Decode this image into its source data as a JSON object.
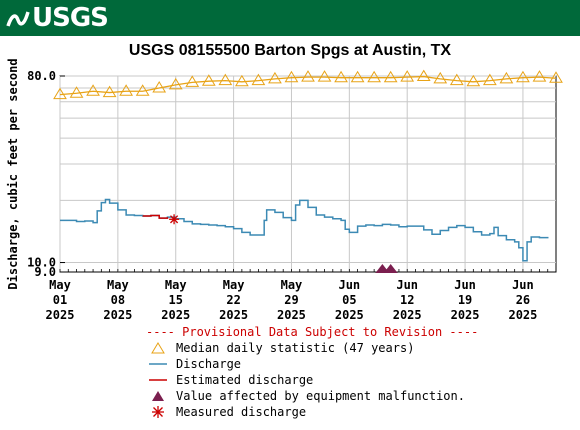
{
  "header": {
    "logo_text": "USGS"
  },
  "chart_data": {
    "type": "line",
    "title": "USGS 08155500 Barton Spgs at Austin, TX",
    "ylabel": "Discharge, cubic feet per second",
    "y_scale": "log",
    "ylim": [
      9.0,
      80.0
    ],
    "y_ticks": [
      {
        "value": 80.0,
        "label": "80.0"
      },
      {
        "value": 10.0,
        "label": "10.0"
      },
      {
        "value": 9.0,
        "label": "9.0"
      }
    ],
    "xlim": [
      "2025-05-01",
      "2025-06-30"
    ],
    "x_ticks": [
      {
        "date": "2025-05-01",
        "lines": [
          "May",
          "01",
          "2025"
        ]
      },
      {
        "date": "2025-05-08",
        "lines": [
          "May",
          "08",
          "2025"
        ]
      },
      {
        "date": "2025-05-15",
        "lines": [
          "May",
          "15",
          "2025"
        ]
      },
      {
        "date": "2025-05-22",
        "lines": [
          "May",
          "22",
          "2025"
        ]
      },
      {
        "date": "2025-05-29",
        "lines": [
          "May",
          "29",
          "2025"
        ]
      },
      {
        "date": "2025-06-05",
        "lines": [
          "Jun",
          "05",
          "2025"
        ]
      },
      {
        "date": "2025-06-12",
        "lines": [
          "Jun",
          "12",
          "2025"
        ]
      },
      {
        "date": "2025-06-19",
        "lines": [
          "Jun",
          "19",
          "2025"
        ]
      },
      {
        "date": "2025-06-26",
        "lines": [
          "Jun",
          "26",
          "2025"
        ]
      }
    ],
    "grid": true,
    "series": [
      {
        "name": "Median daily statistic (47 years)",
        "color": "#e8a317",
        "marker": "triangle",
        "points": [
          [
            "2025-05-01",
            65.0
          ],
          [
            "2025-05-03",
            66.0
          ],
          [
            "2025-05-05",
            67.5
          ],
          [
            "2025-05-07",
            66.5
          ],
          [
            "2025-05-09",
            67.5
          ],
          [
            "2025-05-11",
            67.5
          ],
          [
            "2025-05-13",
            70.0
          ],
          [
            "2025-05-15",
            72.5
          ],
          [
            "2025-05-17",
            74.5
          ],
          [
            "2025-05-19",
            75.5
          ],
          [
            "2025-05-21",
            76.0
          ],
          [
            "2025-05-23",
            75.0
          ],
          [
            "2025-05-25",
            76.0
          ],
          [
            "2025-05-27",
            77.5
          ],
          [
            "2025-05-29",
            78.5
          ],
          [
            "2025-05-31",
            79.0
          ],
          [
            "2025-06-02",
            79.0
          ],
          [
            "2025-06-04",
            78.5
          ],
          [
            "2025-06-06",
            78.5
          ],
          [
            "2025-06-08",
            78.5
          ],
          [
            "2025-06-10",
            78.5
          ],
          [
            "2025-06-12",
            79.0
          ],
          [
            "2025-06-14",
            79.5
          ],
          [
            "2025-06-16",
            77.5
          ],
          [
            "2025-06-18",
            76.0
          ],
          [
            "2025-06-20",
            75.0
          ],
          [
            "2025-06-22",
            76.0
          ],
          [
            "2025-06-24",
            77.5
          ],
          [
            "2025-06-26",
            78.5
          ],
          [
            "2025-06-28",
            79.0
          ],
          [
            "2025-06-30",
            78.0
          ]
        ]
      },
      {
        "name": "Discharge",
        "color": "#3c8ab4",
        "step": true,
        "points": [
          [
            "2025-05-01",
            16.0
          ],
          [
            "2025-05-02",
            16.0
          ],
          [
            "2025-05-03",
            15.8
          ],
          [
            "2025-05-04",
            15.9
          ],
          [
            "2025-05-05",
            15.6
          ],
          [
            "2025-05-05.5",
            17.8
          ],
          [
            "2025-05-06",
            19.5
          ],
          [
            "2025-05-06.5",
            20.2
          ],
          [
            "2025-05-07",
            19.4
          ],
          [
            "2025-05-08",
            18.0
          ],
          [
            "2025-05-09",
            17.0
          ],
          [
            "2025-05-10",
            16.9
          ],
          [
            "2025-05-11",
            16.8
          ],
          [
            "2025-05-12",
            16.9
          ],
          [
            "2025-05-13",
            16.4
          ],
          [
            "2025-05-14",
            16.6
          ],
          [
            "2025-05-15",
            16.3
          ],
          [
            "2025-05-16",
            15.8
          ],
          [
            "2025-05-17",
            15.4
          ],
          [
            "2025-05-18",
            15.3
          ],
          [
            "2025-05-19",
            15.2
          ],
          [
            "2025-05-20",
            15.1
          ],
          [
            "2025-05-21",
            14.9
          ],
          [
            "2025-05-22",
            14.6
          ],
          [
            "2025-05-23",
            14.0
          ],
          [
            "2025-05-24",
            13.6
          ],
          [
            "2025-05-25",
            13.6
          ],
          [
            "2025-05-25.7",
            16.0
          ],
          [
            "2025-05-26",
            18.0
          ],
          [
            "2025-05-27",
            17.5
          ],
          [
            "2025-05-28",
            16.5
          ],
          [
            "2025-05-29",
            16.0
          ],
          [
            "2025-05-29.5",
            19.0
          ],
          [
            "2025-05-30",
            20.0
          ],
          [
            "2025-05-31",
            18.5
          ],
          [
            "2025-06-01",
            17.0
          ],
          [
            "2025-06-02",
            16.6
          ],
          [
            "2025-06-03",
            16.3
          ],
          [
            "2025-06-04",
            16.0
          ],
          [
            "2025-06-04.5",
            14.5
          ],
          [
            "2025-06-05",
            14.0
          ],
          [
            "2025-06-06",
            15.0
          ],
          [
            "2025-06-07",
            15.2
          ],
          [
            "2025-06-08",
            15.1
          ],
          [
            "2025-06-09",
            15.3
          ],
          [
            "2025-06-10",
            15.2
          ],
          [
            "2025-06-11",
            14.9
          ],
          [
            "2025-06-12",
            15.0
          ],
          [
            "2025-06-13",
            15.0
          ],
          [
            "2025-06-14",
            14.4
          ],
          [
            "2025-06-15",
            13.7
          ],
          [
            "2025-06-16",
            14.3
          ],
          [
            "2025-06-17",
            14.8
          ],
          [
            "2025-06-18",
            15.1
          ],
          [
            "2025-06-19",
            14.8
          ],
          [
            "2025-06-20",
            14.1
          ],
          [
            "2025-06-21",
            13.6
          ],
          [
            "2025-06-22",
            13.8
          ],
          [
            "2025-06-22.5",
            14.8
          ],
          [
            "2025-06-23",
            13.5
          ],
          [
            "2025-06-24",
            12.9
          ],
          [
            "2025-06-25",
            12.6
          ],
          [
            "2025-06-25.5",
            11.8
          ],
          [
            "2025-06-26",
            10.2
          ],
          [
            "2025-06-26.5",
            12.6
          ],
          [
            "2025-06-27",
            13.3
          ],
          [
            "2025-06-28",
            13.2
          ],
          [
            "2025-06-29",
            13.1
          ]
        ]
      },
      {
        "name": "Estimated discharge",
        "color": "#cc0000",
        "points": [
          [
            "2025-05-11",
            16.8
          ],
          [
            "2025-05-12",
            16.9
          ],
          [
            "2025-05-13",
            16.4
          ],
          [
            "2025-05-14",
            16.6
          ]
        ]
      },
      {
        "name": "Value affected by equipment malfunction.",
        "color": "#7b1f4f",
        "marker": "triangle-filled",
        "points": [
          [
            "2025-06-09",
            9.0
          ],
          [
            "2025-06-10",
            9.0
          ]
        ]
      },
      {
        "name": "Measured discharge",
        "color": "#cc0000",
        "marker": "asterisk",
        "points": [
          [
            "2025-05-14.8",
            16.2
          ]
        ]
      }
    ]
  },
  "legend": {
    "provisional": "---- Provisional Data Subject to Revision ----",
    "items": [
      {
        "label": "Median daily statistic (47 years)",
        "icon": "triangle-outline-icon",
        "color": "#e8a317"
      },
      {
        "label": "Discharge",
        "icon": "line-icon",
        "color": "#3c8ab4"
      },
      {
        "label": "Estimated discharge",
        "icon": "line-icon",
        "color": "#cc0000"
      },
      {
        "label": "Value affected by equipment malfunction.",
        "icon": "triangle-filled-icon",
        "color": "#7b1f4f"
      },
      {
        "label": "Measured discharge",
        "icon": "asterisk-icon",
        "color": "#cc0000"
      }
    ]
  }
}
